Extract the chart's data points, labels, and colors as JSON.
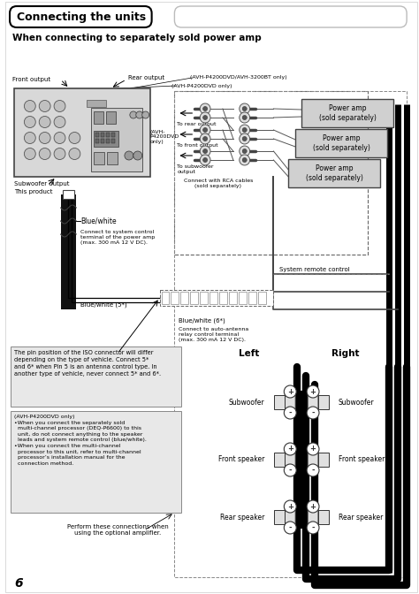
{
  "title": "Connecting the units",
  "subtitle": "When connecting to separately sold power amp",
  "bg_color": "#ffffff",
  "page_number": "6",
  "labels": {
    "rear_output": "Rear output",
    "front_output": "Front output",
    "subwoofer_output": "Subwoofer output",
    "this_product": "This product",
    "avh_p4200dvd_avh_3200bt": "(AVH-P4200DVD/AVH-3200BT only)",
    "avh_p4200dvd_only1": "(AVH-P4200DVD only)",
    "avh_p4200dvd_only2": "(AVH-\nP4200DVD\nonly)",
    "to_rear_output": "To rear output",
    "to_front_output": "To front output",
    "to_subwoofer_output": "To subwoofer\noutput",
    "connect_rca": "Connect with RCA cables\n(sold separately)",
    "power_amp": "Power amp\n(sold separately)",
    "blue_white": "Blue/white",
    "blue_white_5": "Blue/white (5*)",
    "blue_white_6": "Blue/white (6*)",
    "connect_system": "Connect to system control\nterminal of the power amp\n(max. 300 mA 12 V DC).",
    "connect_antenna": "Connect to auto-antenna\nrelay control terminal\n(max. 300 mA 12 V DC).",
    "system_remote": "System remote control",
    "left": "Left",
    "right": "Right",
    "subwoofer_l": "Subwoofer",
    "subwoofer_r": "Subwoofer",
    "front_speaker_l": "Front speaker",
    "front_speaker_r": "Front speaker",
    "rear_speaker_l": "Rear speaker",
    "rear_speaker_r": "Rear speaker",
    "perform": "Perform these connections when\nusing the optional amplifier.",
    "iso_note": "The pin position of the ISO connector will differ\ndepending on the type of vehicle. Connect 5*\nand 6* when Pin 5 is an antenna control type. In\nanother type of vehicle, never connect 5* and 6*.",
    "avh_note": "(AVH-P4200DVD only)\n•When you connect the separately sold\n  multi-channel processor (DEQ-P6600) to this\n  unit, do not connect anything to the speaker\n  leads and system remote control (blue/white).\n•When you connect the multi-channel\n  processor to this unit, refer to multi-channel\n  processor’s installation manual for the\n  connection method."
  }
}
